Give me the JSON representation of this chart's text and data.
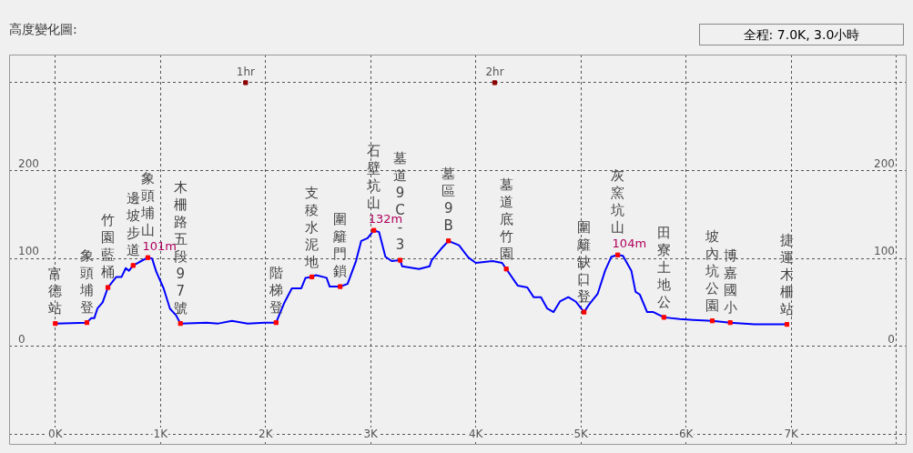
{
  "chart_data": {
    "type": "line",
    "title": "高度變化圖:",
    "annotations": [
      "全程: 7.0K, 3.0小時",
      {
        "text": "富德站",
        "x": 0,
        "y": 26
      },
      {
        "text": "象頭埔登",
        "x": 0.3,
        "y": 27
      },
      {
        "text": "竹園藍桶",
        "x": 0.5,
        "y": 67
      },
      {
        "text": "邊坡步道",
        "x": 0.74,
        "y": 92
      },
      {
        "text": "象頭埔山",
        "x": 0.88,
        "y": 101
      },
      {
        "text": "101m",
        "x": 0.88,
        "y": 101
      },
      {
        "text": "木柵路五段97號",
        "x": 1.19,
        "y": 26
      },
      {
        "text": "階梯登",
        "x": 2.1,
        "y": 27
      },
      {
        "text": "支稜水泥地",
        "x": 2.44,
        "y": 79
      },
      {
        "text": "圍籬門鎖",
        "x": 2.71,
        "y": 68
      },
      {
        "text": "石壁坑山",
        "x": 3.03,
        "y": 132
      },
      {
        "text": "132m",
        "x": 3.03,
        "y": 132
      },
      {
        "text": "墓道9C-3",
        "x": 3.28,
        "y": 98
      },
      {
        "text": "墓區9B",
        "x": 3.74,
        "y": 120
      },
      {
        "text": "墓道底竹園",
        "x": 4.29,
        "y": 88
      },
      {
        "text": "圍籬缺口登",
        "x": 5.03,
        "y": 39
      },
      {
        "text": "灰窯坑山",
        "x": 5.35,
        "y": 104
      },
      {
        "text": "104m",
        "x": 5.35,
        "y": 104
      },
      {
        "text": "田寮土地公",
        "x": 5.79,
        "y": 33
      },
      {
        "text": "坡內坑公園",
        "x": 6.25,
        "y": 29
      },
      {
        "text": "博嘉國小",
        "x": 6.42,
        "y": 27
      },
      {
        "text": "捷運木柵站",
        "x": 6.96,
        "y": 25
      }
    ],
    "xlim": [
      -0.44,
      8.09
    ],
    "xticks": [
      {
        "value": 0,
        "label": "0K"
      },
      {
        "value": 1,
        "label": "1K"
      },
      {
        "value": 2,
        "label": "2K"
      },
      {
        "value": 3,
        "label": "3K"
      },
      {
        "value": 4,
        "label": "4K"
      },
      {
        "value": 5,
        "label": "5K"
      },
      {
        "value": 6,
        "label": "6K"
      },
      {
        "value": 7,
        "label": "7K"
      },
      {
        "value": 8,
        "label": null
      }
    ],
    "ylim": [
      -111,
      332
    ],
    "yticks": [
      {
        "value": -100,
        "label": null
      },
      0,
      100,
      200,
      {
        "value": 300,
        "label": null
      }
    ],
    "y2lim": [
      -111,
      332
    ],
    "y2ticks": [
      0,
      100,
      200
    ],
    "x2lim": [
      0.05,
      3.65
    ],
    "x2ticks": [
      {
        "value": 1,
        "label": "1hr"
      },
      {
        "value": 2,
        "label": "2hr"
      }
    ],
    "grid": true,
    "series": [
      {
        "marker": "none",
        "color": "#0000ff",
        "x": [
          0,
          0.3,
          0.34,
          0.37,
          0.4,
          0.45,
          0.5,
          0.58,
          0.63,
          0.67,
          0.7,
          0.74,
          0.8,
          0.88,
          0.92,
          0.96,
          1.03,
          1.09,
          1.15,
          1.19,
          1.44,
          1.55,
          1.68,
          1.83,
          1.99,
          2.1,
          2.18,
          2.25,
          2.34,
          2.38,
          2.44,
          2.48,
          2.58,
          2.61,
          2.71,
          2.78,
          2.86,
          2.91,
          2.97,
          3.03,
          3.08,
          3.14,
          3.2,
          3.28,
          3.3,
          3.46,
          3.56,
          3.58,
          3.67,
          3.74,
          3.84,
          3.93,
          4.0,
          4.16,
          4.25,
          4.29,
          4.4,
          4.49,
          4.55,
          4.62,
          4.68,
          4.74,
          4.8,
          4.88,
          4.95,
          5.03,
          5.08,
          5.16,
          5.23,
          5.29,
          5.35,
          5.4,
          5.48,
          5.52,
          5.56,
          5.63,
          5.69,
          5.79,
          5.94,
          6.07,
          6.25,
          6.42,
          6.65,
          6.96
        ],
        "values": [
          26,
          27,
          32,
          32,
          43,
          50,
          67,
          79,
          79,
          89,
          86,
          92,
          96,
          101,
          100,
          85,
          66,
          43,
          35,
          26,
          27,
          26,
          29,
          26,
          27,
          27,
          50,
          66,
          66,
          78,
          79,
          81,
          78,
          68,
          68,
          71,
          97,
          120,
          123,
          132,
          130,
          102,
          97,
          98,
          91,
          88,
          91,
          98,
          111,
          120,
          115,
          101,
          95,
          97,
          95,
          88,
          69,
          67,
          56,
          56,
          43,
          39,
          51,
          56,
          51,
          39,
          48,
          60,
          86,
          102,
          104,
          103,
          86,
          62,
          59,
          39,
          39,
          33,
          31,
          30,
          29,
          27,
          25,
          25
        ]
      },
      {
        "type": "scatter",
        "marker": "square",
        "color": "#ff0000",
        "x": [
          0,
          0.3,
          0.5,
          0.74,
          0.88,
          1.19,
          2.1,
          2.44,
          2.71,
          3.03,
          3.28,
          3.74,
          4.29,
          5.03,
          5.35,
          5.79,
          6.25,
          6.42,
          6.96
        ],
        "values": [
          26,
          27,
          67,
          92,
          101,
          26,
          27,
          79,
          68,
          132,
          98,
          120,
          88,
          39,
          104,
          33,
          29,
          27,
          25
        ]
      },
      {
        "type": "scatter",
        "marker": "square",
        "color": "#8b0000",
        "x": [
          1.81,
          4.18
        ],
        "values": [
          300,
          300
        ]
      }
    ]
  }
}
